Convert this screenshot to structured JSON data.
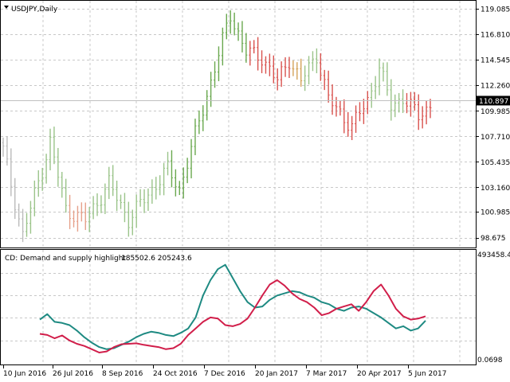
{
  "chart_data": [
    {
      "type": "bar",
      "title": "USDJPY,Daily",
      "ylim": [
        97.8,
        119.8
      ],
      "yticks": [
        "119.085",
        "116.810",
        "114.545",
        "112.260",
        "109.985",
        "107.710",
        "105.435",
        "103.160",
        "100.985",
        "98.675"
      ],
      "yticks_values": [
        119.085,
        116.81,
        114.545,
        112.26,
        109.985,
        107.71,
        105.435,
        103.16,
        100.985,
        98.675
      ],
      "current_price": 110.897,
      "current_price_label": "110.897",
      "grid": true,
      "colors": {
        "neutral": "#bbbbbb",
        "demand": "#6aa84f",
        "demand_light": "#9bc48a",
        "supply": "#d9534f",
        "supply_light": "#e6a08a",
        "transition": "#d4a35a",
        "current_line": "#c0c0c0",
        "grid": "#c8c8c8"
      },
      "price_segments": [
        {
          "x": [
            0,
            5
          ],
          "y": [
            106.5,
            98.9
          ],
          "color": "neutral"
        },
        {
          "x": [
            5,
            12
          ],
          "y": [
            98.9,
            107.2
          ],
          "color": "demand_light"
        },
        {
          "x": [
            12,
            16
          ],
          "y": [
            107.2,
            101.2
          ],
          "color": "demand_light"
        },
        {
          "x": [
            16,
            21
          ],
          "y": [
            101.2,
            100.2
          ],
          "color": "supply_light"
        },
        {
          "x": [
            21,
            27
          ],
          "y": [
            100.2,
            103.5
          ],
          "color": "demand_light"
        },
        {
          "x": [
            27,
            32
          ],
          "y": [
            103.5,
            100.3
          ],
          "color": "demand_light"
        },
        {
          "x": [
            32,
            42
          ],
          "y": [
            100.3,
            104.8
          ],
          "color": "demand_light"
        },
        {
          "x": [
            42,
            45
          ],
          "y": [
            104.8,
            103.0
          ],
          "color": "demand"
        },
        {
          "x": [
            45,
            58
          ],
          "y": [
            103.0,
            118.6
          ],
          "color": "demand"
        },
        {
          "x": [
            58,
            62
          ],
          "y": [
            118.6,
            115.2
          ],
          "color": "demand"
        },
        {
          "x": [
            62,
            66
          ],
          "y": [
            115.2,
            114.8
          ],
          "color": "supply"
        },
        {
          "x": [
            66,
            70
          ],
          "y": [
            114.8,
            112.6
          ],
          "color": "supply"
        },
        {
          "x": [
            70,
            73
          ],
          "y": [
            112.6,
            114.6
          ],
          "color": "supply"
        },
        {
          "x": [
            73,
            76
          ],
          "y": [
            114.6,
            112.6
          ],
          "color": "transition"
        },
        {
          "x": [
            76,
            80
          ],
          "y": [
            112.6,
            115.0
          ],
          "color": "demand_light"
        },
        {
          "x": [
            80,
            83
          ],
          "y": [
            115.0,
            111.0
          ],
          "color": "supply"
        },
        {
          "x": [
            83,
            89
          ],
          "y": [
            111.0,
            108.6
          ],
          "color": "supply"
        },
        {
          "x": [
            89,
            93
          ],
          "y": [
            108.6,
            110.9
          ],
          "color": "supply"
        },
        {
          "x": [
            93,
            96
          ],
          "y": [
            110.9,
            113.9
          ],
          "color": "demand_light"
        },
        {
          "x": [
            96,
            99
          ],
          "y": [
            113.9,
            110.4
          ],
          "color": "demand_light"
        },
        {
          "x": [
            99,
            102
          ],
          "y": [
            110.4,
            111.2
          ],
          "color": "demand_light"
        },
        {
          "x": [
            102,
            106
          ],
          "y": [
            111.2,
            109.5
          ],
          "color": "supply"
        },
        {
          "x": [
            106,
            109
          ],
          "y": [
            109.5,
            110.5
          ],
          "color": "supply"
        }
      ],
      "bar_count": 110
    },
    {
      "type": "line",
      "title": "CD: Demand and supply highlight",
      "values_label": "185502.6 205243.6",
      "ylim": [
        0,
        493458.4
      ],
      "yticks": [
        "493458.4",
        "0.0698"
      ],
      "x_ticks": [
        "10 Jun 2016",
        "26 Jul 2016",
        "8 Sep 2016",
        "24 Oct 2016",
        "7 Dec 2016",
        "20 Jan 2017",
        "7 Mar 2017",
        "20 Apr 2017",
        "5 Jun 2017"
      ],
      "grid": true,
      "series": [
        {
          "name": "",
          "color": "#1e8a82",
          "values": [
            190000,
            215000,
            180000,
            175000,
            165000,
            140000,
            110000,
            85000,
            65000,
            55000,
            60000,
            75000,
            90000,
            110000,
            125000,
            135000,
            130000,
            120000,
            115000,
            130000,
            150000,
            200000,
            300000,
            370000,
            420000,
            440000,
            380000,
            320000,
            270000,
            245000,
            250000,
            280000,
            300000,
            310000,
            320000,
            315000,
            300000,
            290000,
            270000,
            260000,
            240000,
            230000,
            245000,
            250000,
            240000,
            220000,
            200000,
            175000,
            150000,
            160000,
            140000,
            150000,
            185502.6
          ]
        },
        {
          "name": "",
          "color": "#d11e4a",
          "values": [
            125000,
            120000,
            105000,
            118000,
            95000,
            80000,
            70000,
            55000,
            40000,
            45000,
            65000,
            78000,
            80000,
            82000,
            75000,
            70000,
            65000,
            55000,
            60000,
            80000,
            120000,
            150000,
            180000,
            200000,
            195000,
            165000,
            160000,
            170000,
            195000,
            245000,
            300000,
            350000,
            370000,
            345000,
            310000,
            285000,
            270000,
            245000,
            210000,
            220000,
            240000,
            250000,
            260000,
            230000,
            270000,
            320000,
            350000,
            300000,
            240000,
            205000,
            190000,
            195000,
            205243.6
          ]
        }
      ]
    }
  ]
}
